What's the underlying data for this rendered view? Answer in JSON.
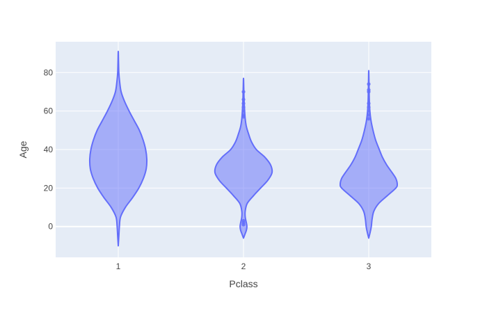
{
  "chart_data": {
    "type": "violin",
    "xlabel": "Pclass",
    "ylabel": "Age",
    "categories": [
      "1",
      "2",
      "3"
    ],
    "ylim": [
      -16,
      96
    ],
    "y_ticks": [
      0,
      20,
      40,
      60,
      80
    ],
    "grid": true,
    "legend": "none",
    "colors": {
      "fill": "#636efa",
      "fill_opacity": 0.5,
      "line": "#636efa",
      "plot_bg": "#e5ecf6"
    },
    "series": [
      {
        "category": "1",
        "profile": [
          [
            -10,
            0.0
          ],
          [
            -5,
            0.02
          ],
          [
            0,
            0.04
          ],
          [
            5,
            0.08
          ],
          [
            10,
            0.25
          ],
          [
            15,
            0.5
          ],
          [
            20,
            0.72
          ],
          [
            25,
            0.88
          ],
          [
            30,
            0.98
          ],
          [
            35,
            1.0
          ],
          [
            40,
            0.96
          ],
          [
            45,
            0.87
          ],
          [
            50,
            0.74
          ],
          [
            55,
            0.56
          ],
          [
            60,
            0.38
          ],
          [
            65,
            0.22
          ],
          [
            70,
            0.1
          ],
          [
            75,
            0.05
          ],
          [
            80,
            0.02
          ],
          [
            85,
            0.01
          ],
          [
            91,
            0.0
          ]
        ],
        "outliers": []
      },
      {
        "category": "2",
        "profile": [
          [
            -6,
            0.0
          ],
          [
            -4,
            0.05
          ],
          [
            -2,
            0.1
          ],
          [
            0,
            0.12
          ],
          [
            2,
            0.1
          ],
          [
            5,
            0.06
          ],
          [
            8,
            0.06
          ],
          [
            12,
            0.13
          ],
          [
            16,
            0.35
          ],
          [
            20,
            0.6
          ],
          [
            24,
            0.85
          ],
          [
            28,
            1.0
          ],
          [
            32,
            0.95
          ],
          [
            36,
            0.75
          ],
          [
            40,
            0.45
          ],
          [
            44,
            0.28
          ],
          [
            48,
            0.18
          ],
          [
            52,
            0.1
          ],
          [
            56,
            0.06
          ],
          [
            60,
            0.04
          ],
          [
            66,
            0.02
          ],
          [
            72,
            0.01
          ],
          [
            77,
            0.0
          ]
        ],
        "outliers": [
          1,
          2,
          3,
          57,
          58,
          60,
          62,
          64,
          66,
          70
        ]
      },
      {
        "category": "3",
        "profile": [
          [
            -6,
            0.0
          ],
          [
            -3,
            0.05
          ],
          [
            0,
            0.09
          ],
          [
            4,
            0.12
          ],
          [
            8,
            0.18
          ],
          [
            12,
            0.35
          ],
          [
            16,
            0.65
          ],
          [
            20,
            0.95
          ],
          [
            22,
            1.0
          ],
          [
            25,
            0.95
          ],
          [
            28,
            0.82
          ],
          [
            32,
            0.63
          ],
          [
            36,
            0.48
          ],
          [
            40,
            0.37
          ],
          [
            45,
            0.24
          ],
          [
            50,
            0.15
          ],
          [
            55,
            0.08
          ],
          [
            60,
            0.04
          ],
          [
            66,
            0.02
          ],
          [
            74,
            0.01
          ],
          [
            81,
            0.0
          ]
        ],
        "outliers": [
          56,
          58,
          60,
          62,
          64,
          70,
          71,
          74
        ]
      }
    ]
  }
}
